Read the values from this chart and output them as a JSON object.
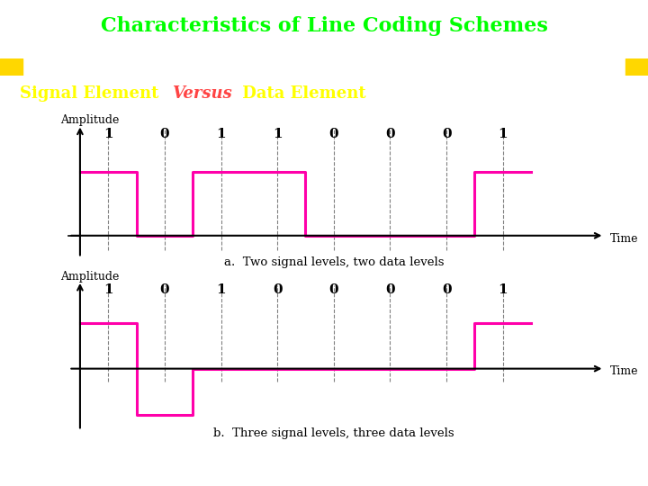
{
  "title": "Characteristics of Line Coding Schemes",
  "subtitle": "Signal Element Versus Data Element",
  "subtitle_colored": "Versus",
  "title_bg": "#000080",
  "title_text_color": "#00ff00",
  "subtitle_bg": "#000080",
  "subtitle_text_color": "#ffff00",
  "subtitle_versus_color": "#ff4444",
  "header_bar_color": "#ff0000",
  "header_bar_left_color": "#ffd700",
  "header_bar_right_color": "#ffd700",
  "signal_color": "#ff00aa",
  "bg_color": "#ffffff",
  "labels_a": [
    "1",
    "0",
    "1",
    "1",
    "0",
    "0",
    "0",
    "1"
  ],
  "labels_b": [
    "1",
    "0",
    "1",
    "0",
    "0",
    "0",
    "0",
    "1"
  ],
  "caption_a": "a.  Two signal levels, two data levels",
  "caption_b": "b.  Three signal levels, three data levels",
  "axis_label_amplitude": "Amplitude",
  "axis_label_time": "Time"
}
